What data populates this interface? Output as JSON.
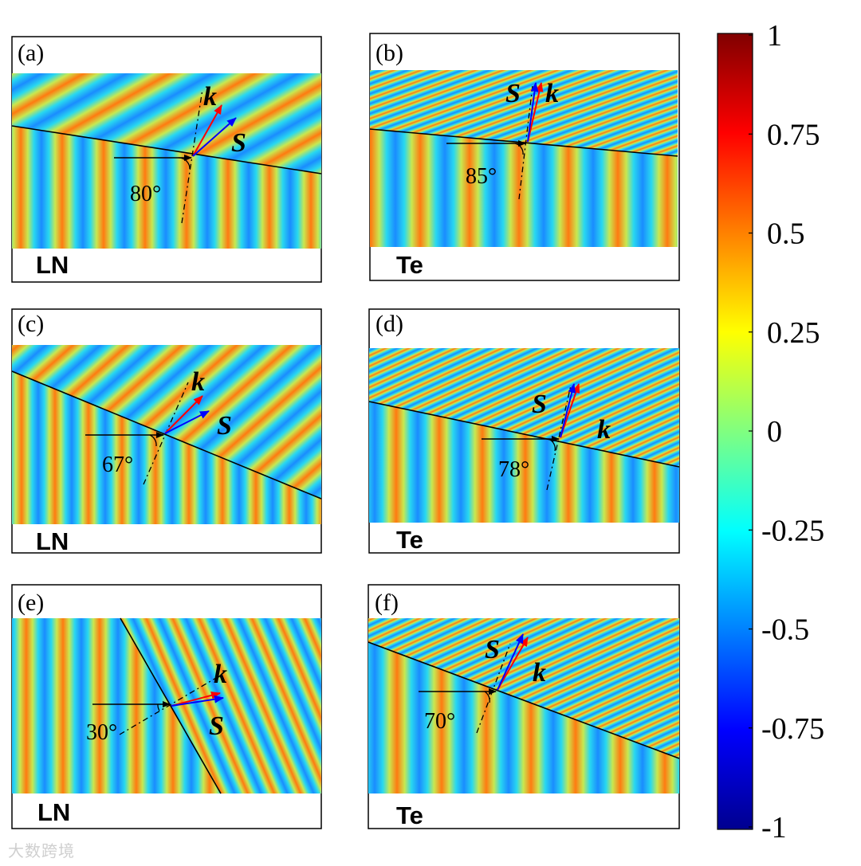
{
  "colors": {
    "jet": [
      "#00008f",
      "#0000ff",
      "#0080ff",
      "#00ffff",
      "#80ff80",
      "#ffff00",
      "#ff8000",
      "#ff0000",
      "#800000"
    ],
    "k_arrow": "#ff0000",
    "s_arrow": "#0000ff"
  },
  "panels": [
    {
      "label": "(a)",
      "material": "LN",
      "angle": "80°",
      "k": "k",
      "S": "S"
    },
    {
      "label": "(b)",
      "material": "Te",
      "angle": "85°",
      "k": "k",
      "S": "S"
    },
    {
      "label": "(c)",
      "material": "LN",
      "angle": "67°",
      "k": "k",
      "S": "S"
    },
    {
      "label": "(d)",
      "material": "Te",
      "angle": "78°",
      "k": "k",
      "S": "S"
    },
    {
      "label": "(e)",
      "material": "LN",
      "angle": "30°",
      "k": "k",
      "S": "S"
    },
    {
      "label": "(f)",
      "material": "Te",
      "angle": "70°",
      "k": "k",
      "S": "S"
    }
  ],
  "colorbar": {
    "min": -1,
    "max": 1,
    "ticks": [
      "1",
      "0.75",
      "0.5",
      "0.25",
      "0",
      "-0.25",
      "-0.5",
      "-0.75",
      "-1"
    ]
  },
  "watermark": "大数跨境"
}
